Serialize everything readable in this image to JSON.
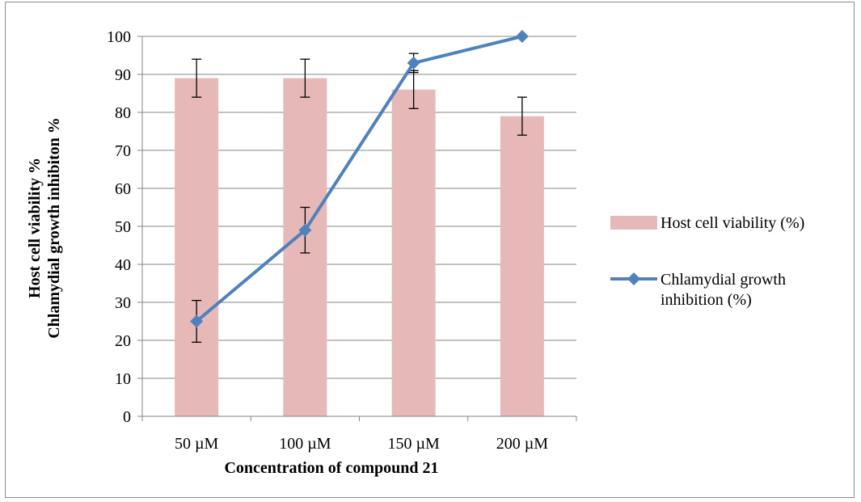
{
  "chart_data": {
    "type": "bar",
    "categories": [
      "50 µM",
      "100 µM",
      "150 µM",
      "200 µM"
    ],
    "xlabel": "Concentration of compound 21",
    "ylabel": [
      "Host cell viability %",
      "Chlamydial growth inhibiton %"
    ],
    "ylim": [
      0,
      100
    ],
    "yticks": [
      0,
      10,
      20,
      30,
      40,
      50,
      60,
      70,
      80,
      90,
      100
    ],
    "grid": true,
    "legend_position": "right",
    "series": [
      {
        "name": "Host cell viability (%)",
        "type": "bar",
        "color": "#e6b9b8",
        "values": [
          89,
          89,
          86,
          79
        ],
        "error": [
          5,
          5,
          5,
          5
        ]
      },
      {
        "name": "Chlamydial growth inhibition (%)",
        "type": "line",
        "marker": "diamond",
        "color": "#4f81bd",
        "values": [
          25,
          49,
          93,
          100
        ],
        "error": [
          5.5,
          6,
          2.5,
          0
        ]
      }
    ]
  }
}
